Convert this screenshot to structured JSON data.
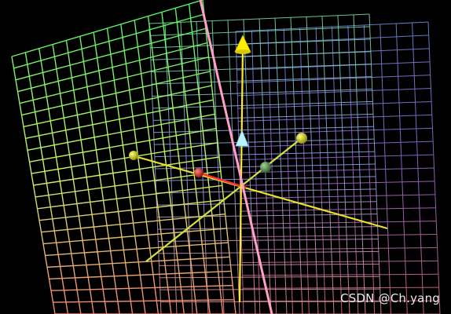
{
  "scene": {
    "background": "#000000",
    "watermark": "CSDN @Ch.yang",
    "grid_planes": [
      {
        "name": "grid-plane-back-right",
        "colors": [
          "#7fa8ff",
          "#b07fff",
          "#ff7fa0"
        ]
      },
      {
        "name": "grid-plane-middle",
        "colors": [
          "#7fffb0",
          "#a0b0ff",
          "#ff9fa0"
        ]
      },
      {
        "name": "grid-plane-front-left",
        "colors": [
          "#4cff6a",
          "#d8ff6a",
          "#ff8a7a"
        ]
      }
    ],
    "axes": [
      {
        "name": "axis-pink",
        "color": "#ff9fc8"
      },
      {
        "name": "axis-yellow-vertical",
        "color": "#ffea30"
      },
      {
        "name": "axis-yellow-horizontal",
        "color": "#e8e030"
      },
      {
        "name": "axis-yellow-diagonal",
        "color": "#d0e040"
      },
      {
        "name": "axis-red",
        "color": "#ff3030"
      }
    ],
    "markers": [
      {
        "name": "cone-yellow-top",
        "color": "#ffee00"
      },
      {
        "name": "cone-cyan-center",
        "color": "#b8f4ff"
      },
      {
        "name": "sphere-yellow-left",
        "color": "#d0d000"
      },
      {
        "name": "sphere-yellow-right",
        "color": "#d8e000"
      },
      {
        "name": "sphere-green-center",
        "color": "#70a860"
      },
      {
        "name": "sphere-red",
        "color": "#ff3333"
      }
    ]
  }
}
